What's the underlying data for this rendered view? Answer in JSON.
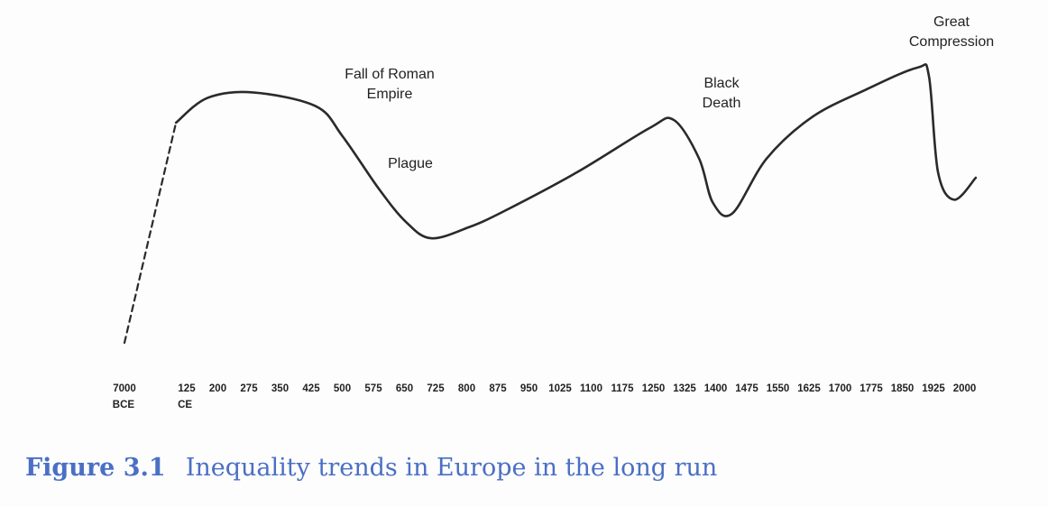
{
  "chart_data": {
    "type": "line",
    "title": "Inequality trends in Europe in the long run",
    "xlabel": "",
    "ylabel": "",
    "ylim": [
      0,
      100
    ],
    "grid": false,
    "x_ticks": [
      {
        "value": -7000,
        "label": "7000",
        "sublabel": "BCE"
      },
      {
        "value": 125,
        "label": "125",
        "sublabel": "CE"
      },
      {
        "value": 200,
        "label": "200"
      },
      {
        "value": 275,
        "label": "275"
      },
      {
        "value": 350,
        "label": "350"
      },
      {
        "value": 425,
        "label": "425"
      },
      {
        "value": 500,
        "label": "500"
      },
      {
        "value": 575,
        "label": "575"
      },
      {
        "value": 650,
        "label": "650"
      },
      {
        "value": 725,
        "label": "725"
      },
      {
        "value": 800,
        "label": "800"
      },
      {
        "value": 875,
        "label": "875"
      },
      {
        "value": 950,
        "label": "950"
      },
      {
        "value": 1025,
        "label": "1025"
      },
      {
        "value": 1100,
        "label": "1100"
      },
      {
        "value": 1175,
        "label": "1175"
      },
      {
        "value": 1250,
        "label": "1250"
      },
      {
        "value": 1325,
        "label": "1325"
      },
      {
        "value": 1400,
        "label": "1400"
      },
      {
        "value": 1475,
        "label": "1475"
      },
      {
        "value": 1550,
        "label": "1550"
      },
      {
        "value": 1625,
        "label": "1625"
      },
      {
        "value": 1700,
        "label": "1700"
      },
      {
        "value": 1775,
        "label": "1775"
      },
      {
        "value": 1850,
        "label": "1850"
      },
      {
        "value": 1925,
        "label": "1925"
      },
      {
        "value": 2000,
        "label": "2000"
      }
    ],
    "series": [
      {
        "name": "dashed-early",
        "style": "dashed",
        "x": [
          -7000,
          -1100
        ],
        "y": [
          0,
          80
        ]
      },
      {
        "name": "inequality",
        "style": "solid",
        "x": [
          -1100,
          175,
          284,
          436,
          501,
          588,
          653,
          714,
          805,
          892,
          1066,
          1240,
          1299,
          1360,
          1393,
          1440,
          1523,
          1632,
          1762,
          1886,
          1914,
          1936,
          1975,
          2027
        ],
        "y": [
          80,
          89,
          91,
          86,
          75,
          56,
          44,
          38,
          42,
          48,
          62,
          78,
          81,
          67,
          51,
          47,
          67,
          82,
          92,
          100,
          97,
          62,
          52,
          60
        ]
      }
    ],
    "annotations": {
      "roman": "Fall of Roman Empire",
      "plague": "Plague",
      "black_death": "Black Death",
      "great_compression": "Great Compression"
    }
  },
  "caption": {
    "number": "Figure 3.1",
    "text": "Inequality trends in Europe in the long run"
  },
  "colors": {
    "line": "#2a2a2a",
    "caption": "#4a6fc4"
  }
}
